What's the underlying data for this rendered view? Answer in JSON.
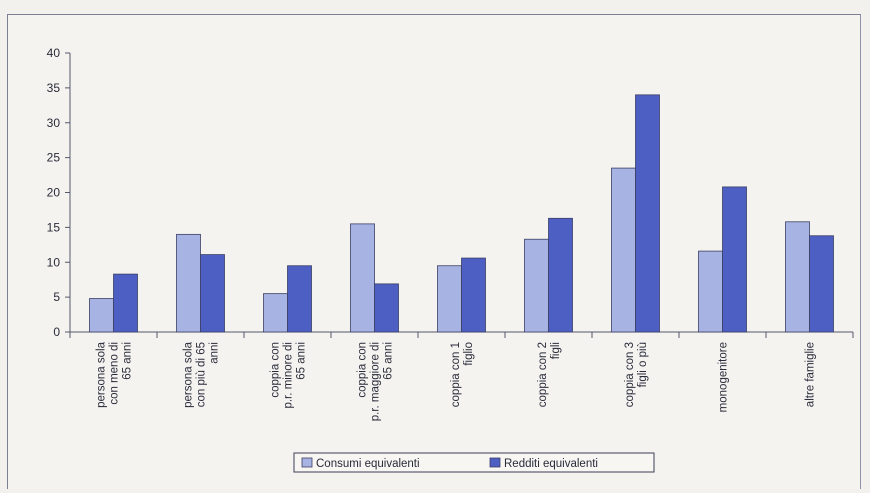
{
  "chart_data": {
    "type": "bar",
    "title": "",
    "xlabel": "",
    "ylabel": "",
    "ylim": [
      0,
      40
    ],
    "yticks": [
      "0",
      "5",
      "10",
      "15",
      "20",
      "25",
      "30",
      "35",
      "40"
    ],
    "grid": false,
    "legend_position": "bottom",
    "categories": [
      [
        "persona sola",
        "con meno di",
        "65 anni"
      ],
      [
        "persona sola",
        "con più di 65",
        "anni"
      ],
      [
        "coppia con",
        "p.r. minore di",
        "65 anni"
      ],
      [
        "coppia con",
        "p.r. maggiore di",
        "65 anni"
      ],
      [
        "coppia con 1",
        "figlio"
      ],
      [
        "coppia con 2",
        "figli"
      ],
      [
        "coppia con 3",
        "figli o più"
      ],
      [
        "monogenitore"
      ],
      [
        "altre famiglie"
      ]
    ],
    "series": [
      {
        "name": "Consumi equivalenti",
        "color": "#a7b3e2",
        "values": [
          4.8,
          14.0,
          5.5,
          15.5,
          9.5,
          13.3,
          23.5,
          11.6,
          15.8
        ]
      },
      {
        "name": "Redditi equivalenti",
        "color": "#4e5fc4",
        "values": [
          8.3,
          11.1,
          9.5,
          6.9,
          10.6,
          16.3,
          34.0,
          20.8,
          13.8
        ]
      }
    ]
  }
}
